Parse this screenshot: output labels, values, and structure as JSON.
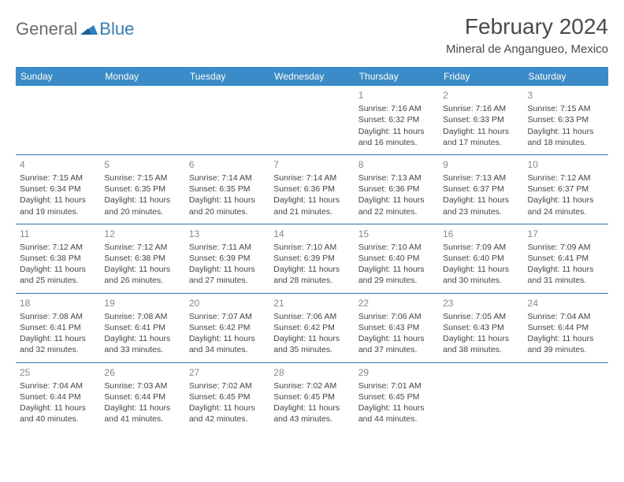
{
  "logo": {
    "general": "General",
    "blue": "Blue"
  },
  "title": "February 2024",
  "location": "Mineral de Angangueo, Mexico",
  "colors": {
    "header_bg": "#3b8bc9",
    "header_fg": "#ffffff",
    "row_border": "#3372a6",
    "daynum": "#888888",
    "text": "#444444",
    "title": "#4a4a4a",
    "logo_gray": "#6b6b6b",
    "logo_blue": "#2f7fbf"
  },
  "weekdays": [
    "Sunday",
    "Monday",
    "Tuesday",
    "Wednesday",
    "Thursday",
    "Friday",
    "Saturday"
  ],
  "weeks": [
    [
      null,
      null,
      null,
      null,
      {
        "n": "1",
        "sr": "Sunrise: 7:16 AM",
        "ss": "Sunset: 6:32 PM",
        "d1": "Daylight: 11 hours",
        "d2": "and 16 minutes."
      },
      {
        "n": "2",
        "sr": "Sunrise: 7:16 AM",
        "ss": "Sunset: 6:33 PM",
        "d1": "Daylight: 11 hours",
        "d2": "and 17 minutes."
      },
      {
        "n": "3",
        "sr": "Sunrise: 7:15 AM",
        "ss": "Sunset: 6:33 PM",
        "d1": "Daylight: 11 hours",
        "d2": "and 18 minutes."
      }
    ],
    [
      {
        "n": "4",
        "sr": "Sunrise: 7:15 AM",
        "ss": "Sunset: 6:34 PM",
        "d1": "Daylight: 11 hours",
        "d2": "and 19 minutes."
      },
      {
        "n": "5",
        "sr": "Sunrise: 7:15 AM",
        "ss": "Sunset: 6:35 PM",
        "d1": "Daylight: 11 hours",
        "d2": "and 20 minutes."
      },
      {
        "n": "6",
        "sr": "Sunrise: 7:14 AM",
        "ss": "Sunset: 6:35 PM",
        "d1": "Daylight: 11 hours",
        "d2": "and 20 minutes."
      },
      {
        "n": "7",
        "sr": "Sunrise: 7:14 AM",
        "ss": "Sunset: 6:36 PM",
        "d1": "Daylight: 11 hours",
        "d2": "and 21 minutes."
      },
      {
        "n": "8",
        "sr": "Sunrise: 7:13 AM",
        "ss": "Sunset: 6:36 PM",
        "d1": "Daylight: 11 hours",
        "d2": "and 22 minutes."
      },
      {
        "n": "9",
        "sr": "Sunrise: 7:13 AM",
        "ss": "Sunset: 6:37 PM",
        "d1": "Daylight: 11 hours",
        "d2": "and 23 minutes."
      },
      {
        "n": "10",
        "sr": "Sunrise: 7:12 AM",
        "ss": "Sunset: 6:37 PM",
        "d1": "Daylight: 11 hours",
        "d2": "and 24 minutes."
      }
    ],
    [
      {
        "n": "11",
        "sr": "Sunrise: 7:12 AM",
        "ss": "Sunset: 6:38 PM",
        "d1": "Daylight: 11 hours",
        "d2": "and 25 minutes."
      },
      {
        "n": "12",
        "sr": "Sunrise: 7:12 AM",
        "ss": "Sunset: 6:38 PM",
        "d1": "Daylight: 11 hours",
        "d2": "and 26 minutes."
      },
      {
        "n": "13",
        "sr": "Sunrise: 7:11 AM",
        "ss": "Sunset: 6:39 PM",
        "d1": "Daylight: 11 hours",
        "d2": "and 27 minutes."
      },
      {
        "n": "14",
        "sr": "Sunrise: 7:10 AM",
        "ss": "Sunset: 6:39 PM",
        "d1": "Daylight: 11 hours",
        "d2": "and 28 minutes."
      },
      {
        "n": "15",
        "sr": "Sunrise: 7:10 AM",
        "ss": "Sunset: 6:40 PM",
        "d1": "Daylight: 11 hours",
        "d2": "and 29 minutes."
      },
      {
        "n": "16",
        "sr": "Sunrise: 7:09 AM",
        "ss": "Sunset: 6:40 PM",
        "d1": "Daylight: 11 hours",
        "d2": "and 30 minutes."
      },
      {
        "n": "17",
        "sr": "Sunrise: 7:09 AM",
        "ss": "Sunset: 6:41 PM",
        "d1": "Daylight: 11 hours",
        "d2": "and 31 minutes."
      }
    ],
    [
      {
        "n": "18",
        "sr": "Sunrise: 7:08 AM",
        "ss": "Sunset: 6:41 PM",
        "d1": "Daylight: 11 hours",
        "d2": "and 32 minutes."
      },
      {
        "n": "19",
        "sr": "Sunrise: 7:08 AM",
        "ss": "Sunset: 6:41 PM",
        "d1": "Daylight: 11 hours",
        "d2": "and 33 minutes."
      },
      {
        "n": "20",
        "sr": "Sunrise: 7:07 AM",
        "ss": "Sunset: 6:42 PM",
        "d1": "Daylight: 11 hours",
        "d2": "and 34 minutes."
      },
      {
        "n": "21",
        "sr": "Sunrise: 7:06 AM",
        "ss": "Sunset: 6:42 PM",
        "d1": "Daylight: 11 hours",
        "d2": "and 35 minutes."
      },
      {
        "n": "22",
        "sr": "Sunrise: 7:06 AM",
        "ss": "Sunset: 6:43 PM",
        "d1": "Daylight: 11 hours",
        "d2": "and 37 minutes."
      },
      {
        "n": "23",
        "sr": "Sunrise: 7:05 AM",
        "ss": "Sunset: 6:43 PM",
        "d1": "Daylight: 11 hours",
        "d2": "and 38 minutes."
      },
      {
        "n": "24",
        "sr": "Sunrise: 7:04 AM",
        "ss": "Sunset: 6:44 PM",
        "d1": "Daylight: 11 hours",
        "d2": "and 39 minutes."
      }
    ],
    [
      {
        "n": "25",
        "sr": "Sunrise: 7:04 AM",
        "ss": "Sunset: 6:44 PM",
        "d1": "Daylight: 11 hours",
        "d2": "and 40 minutes."
      },
      {
        "n": "26",
        "sr": "Sunrise: 7:03 AM",
        "ss": "Sunset: 6:44 PM",
        "d1": "Daylight: 11 hours",
        "d2": "and 41 minutes."
      },
      {
        "n": "27",
        "sr": "Sunrise: 7:02 AM",
        "ss": "Sunset: 6:45 PM",
        "d1": "Daylight: 11 hours",
        "d2": "and 42 minutes."
      },
      {
        "n": "28",
        "sr": "Sunrise: 7:02 AM",
        "ss": "Sunset: 6:45 PM",
        "d1": "Daylight: 11 hours",
        "d2": "and 43 minutes."
      },
      {
        "n": "29",
        "sr": "Sunrise: 7:01 AM",
        "ss": "Sunset: 6:45 PM",
        "d1": "Daylight: 11 hours",
        "d2": "and 44 minutes."
      },
      null,
      null
    ]
  ]
}
